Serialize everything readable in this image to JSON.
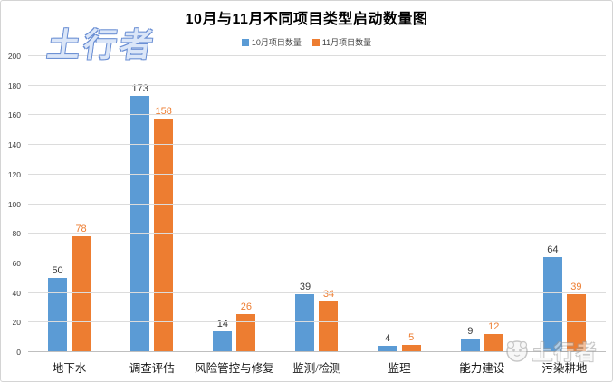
{
  "title": "10月与11月不同项目类型启动数量图",
  "watermarks": {
    "top_left_text": "土行者",
    "bottom_right_text": "土行者"
  },
  "legend": [
    {
      "label": "10月项目数量",
      "color": "#5B9BD5"
    },
    {
      "label": "11月项目数量",
      "color": "#ED7D31"
    }
  ],
  "chart_data": {
    "type": "bar",
    "title": "10月与11月不同项目类型启动数量图",
    "categories": [
      "地下水",
      "调查评估",
      "风险管控与修复",
      "监测/检测",
      "监理",
      "能力建设",
      "污染耕地"
    ],
    "series": [
      {
        "name": "10月项目数量",
        "color": "#5B9BD5",
        "label_color": "#3a3a3a",
        "values": [
          50,
          173,
          14,
          39,
          4,
          9,
          64
        ]
      },
      {
        "name": "11月项目数量",
        "color": "#ED7D31",
        "label_color": "#ED7D31",
        "values": [
          78,
          158,
          26,
          34,
          5,
          12,
          39
        ]
      }
    ],
    "xlabel": "",
    "ylabel": "",
    "ylim": [
      0,
      200
    ],
    "yticks": [
      0,
      20,
      40,
      60,
      80,
      100,
      120,
      140,
      160,
      180,
      200
    ],
    "grid": true,
    "legend_position": "top",
    "bar_value_labels": true
  },
  "colors": {
    "gridline": "#dcdcdc",
    "axis_line": "#bfbfbf",
    "tick_text": "#404040",
    "background": "#ffffff"
  }
}
